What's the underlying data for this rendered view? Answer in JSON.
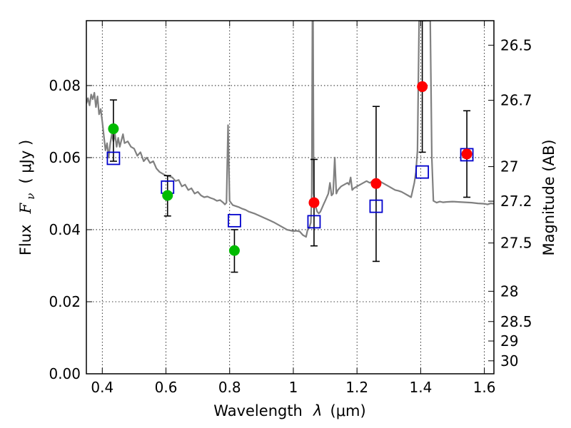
{
  "chart_data": {
    "type": "scatter",
    "xlabel": "Wavelength",
    "xlabel_symbol": "λ",
    "xlabel_unit": "(μm)",
    "ylabel": "Flux",
    "ylabel_symbol": "F",
    "ylabel_sub": "ν",
    "ylabel_unit": "( μJy )",
    "y2label": "Magnitude (AB)",
    "xlim": [
      0.35,
      1.63
    ],
    "ylim": [
      0.0,
      0.098
    ],
    "grid": true,
    "x_ticks": [
      0.4,
      0.6,
      0.8,
      1.0,
      1.2,
      1.4,
      1.6
    ],
    "x_tick_labels": [
      "0.4",
      "0.6",
      "0.8",
      "1",
      "1.2",
      "1.4",
      "1.6"
    ],
    "y_ticks": [
      0.0,
      0.02,
      0.04,
      0.06,
      0.08
    ],
    "y_tick_labels": [
      "0.00",
      "0.02",
      "0.04",
      "0.06",
      "0.08"
    ],
    "y2_ticks": [
      {
        "label": "26.5",
        "flux": 0.0912
      },
      {
        "label": "26.7",
        "flux": 0.0759
      },
      {
        "label": "27",
        "flux": 0.0575
      },
      {
        "label": "27.2",
        "flux": 0.0479
      },
      {
        "label": "27.5",
        "flux": 0.0363
      },
      {
        "label": "28",
        "flux": 0.0229
      },
      {
        "label": "28.5",
        "flux": 0.0145
      },
      {
        "label": "29",
        "flux": 0.0091
      },
      {
        "label": "30",
        "flux": 0.0036
      }
    ],
    "series": [
      {
        "type": "line",
        "color": "#808080",
        "points": [
          [
            0.35,
            0.075
          ],
          [
            0.355,
            0.0765
          ],
          [
            0.36,
            0.0745
          ],
          [
            0.365,
            0.0775
          ],
          [
            0.37,
            0.0762
          ],
          [
            0.375,
            0.078
          ],
          [
            0.38,
            0.074
          ],
          [
            0.385,
            0.077
          ],
          [
            0.39,
            0.072
          ],
          [
            0.395,
            0.0735
          ],
          [
            0.4,
            0.07
          ],
          [
            0.405,
            0.066
          ],
          [
            0.41,
            0.062
          ],
          [
            0.415,
            0.064
          ],
          [
            0.42,
            0.06
          ],
          [
            0.425,
            0.064
          ],
          [
            0.43,
            0.0665
          ],
          [
            0.435,
            0.0645
          ],
          [
            0.44,
            0.0665
          ],
          [
            0.445,
            0.063
          ],
          [
            0.45,
            0.0655
          ],
          [
            0.455,
            0.063
          ],
          [
            0.46,
            0.0648
          ],
          [
            0.465,
            0.0665
          ],
          [
            0.47,
            0.064
          ],
          [
            0.48,
            0.0645
          ],
          [
            0.49,
            0.063
          ],
          [
            0.5,
            0.0625
          ],
          [
            0.51,
            0.0605
          ],
          [
            0.52,
            0.0615
          ],
          [
            0.53,
            0.059
          ],
          [
            0.54,
            0.06
          ],
          [
            0.55,
            0.0585
          ],
          [
            0.56,
            0.059
          ],
          [
            0.57,
            0.057
          ],
          [
            0.58,
            0.056
          ],
          [
            0.59,
            0.0555
          ],
          [
            0.6,
            0.055
          ],
          [
            0.61,
            0.0548
          ],
          [
            0.62,
            0.0545
          ],
          [
            0.63,
            0.0535
          ],
          [
            0.64,
            0.0538
          ],
          [
            0.65,
            0.052
          ],
          [
            0.66,
            0.0525
          ],
          [
            0.67,
            0.051
          ],
          [
            0.68,
            0.0515
          ],
          [
            0.69,
            0.05
          ],
          [
            0.7,
            0.0505
          ],
          [
            0.71,
            0.0495
          ],
          [
            0.72,
            0.049
          ],
          [
            0.73,
            0.0492
          ],
          [
            0.74,
            0.0488
          ],
          [
            0.75,
            0.0485
          ],
          [
            0.76,
            0.048
          ],
          [
            0.77,
            0.0482
          ],
          [
            0.78,
            0.0475
          ],
          [
            0.785,
            0.047
          ],
          [
            0.79,
            0.0475
          ],
          [
            0.795,
            0.069
          ],
          [
            0.8,
            0.048
          ],
          [
            0.81,
            0.0468
          ],
          [
            0.82,
            0.0465
          ],
          [
            0.83,
            0.0462
          ],
          [
            0.84,
            0.0458
          ],
          [
            0.85,
            0.0455
          ],
          [
            0.86,
            0.045
          ],
          [
            0.87,
            0.0447
          ],
          [
            0.88,
            0.0444
          ],
          [
            0.89,
            0.044
          ],
          [
            0.9,
            0.0436
          ],
          [
            0.91,
            0.0432
          ],
          [
            0.92,
            0.0428
          ],
          [
            0.93,
            0.0424
          ],
          [
            0.94,
            0.042
          ],
          [
            0.95,
            0.0415
          ],
          [
            0.96,
            0.041
          ],
          [
            0.97,
            0.0405
          ],
          [
            0.98,
            0.04
          ],
          [
            0.99,
            0.0398
          ],
          [
            1.0,
            0.0396
          ],
          [
            1.01,
            0.0397
          ],
          [
            1.02,
            0.0395
          ],
          [
            1.03,
            0.0385
          ],
          [
            1.04,
            0.038
          ],
          [
            1.045,
            0.04
          ],
          [
            1.05,
            0.0405
          ],
          [
            1.055,
            0.042
          ],
          [
            1.058,
            0.05
          ],
          [
            1.06,
            0.098
          ],
          [
            1.062,
            0.098
          ],
          [
            1.064,
            0.05
          ],
          [
            1.068,
            0.047
          ],
          [
            1.075,
            0.045
          ],
          [
            1.08,
            0.0445
          ],
          [
            1.085,
            0.045
          ],
          [
            1.09,
            0.046
          ],
          [
            1.095,
            0.047
          ],
          [
            1.1,
            0.048
          ],
          [
            1.105,
            0.049
          ],
          [
            1.11,
            0.05
          ],
          [
            1.115,
            0.053
          ],
          [
            1.12,
            0.0495
          ],
          [
            1.125,
            0.05
          ],
          [
            1.13,
            0.06
          ],
          [
            1.135,
            0.05
          ],
          [
            1.14,
            0.051
          ],
          [
            1.15,
            0.052
          ],
          [
            1.16,
            0.0525
          ],
          [
            1.17,
            0.053
          ],
          [
            1.175,
            0.0525
          ],
          [
            1.18,
            0.0545
          ],
          [
            1.185,
            0.051
          ],
          [
            1.19,
            0.0515
          ],
          [
            1.2,
            0.052
          ],
          [
            1.21,
            0.0525
          ],
          [
            1.22,
            0.053
          ],
          [
            1.23,
            0.0535
          ],
          [
            1.24,
            0.053
          ],
          [
            1.25,
            0.0535
          ],
          [
            1.26,
            0.054
          ],
          [
            1.27,
            0.0535
          ],
          [
            1.28,
            0.053
          ],
          [
            1.29,
            0.0525
          ],
          [
            1.3,
            0.052
          ],
          [
            1.31,
            0.0515
          ],
          [
            1.32,
            0.051
          ],
          [
            1.33,
            0.0508
          ],
          [
            1.34,
            0.0505
          ],
          [
            1.35,
            0.05
          ],
          [
            1.36,
            0.0495
          ],
          [
            1.37,
            0.049
          ],
          [
            1.38,
            0.053
          ],
          [
            1.385,
            0.056
          ],
          [
            1.39,
            0.062
          ],
          [
            1.395,
            0.098
          ],
          [
            1.41,
            0.098
          ],
          [
            1.42,
            0.098
          ],
          [
            1.43,
            0.098
          ],
          [
            1.435,
            0.06
          ],
          [
            1.44,
            0.048
          ],
          [
            1.45,
            0.0475
          ],
          [
            1.46,
            0.0478
          ],
          [
            1.47,
            0.0476
          ],
          [
            1.48,
            0.0477
          ],
          [
            1.5,
            0.0478
          ],
          [
            1.52,
            0.0477
          ],
          [
            1.54,
            0.0476
          ],
          [
            1.56,
            0.0475
          ],
          [
            1.58,
            0.0473
          ],
          [
            1.6,
            0.0472
          ],
          [
            1.61,
            0.047
          ],
          [
            1.62,
            0.0473
          ],
          [
            1.63,
            0.0472
          ]
        ]
      },
      {
        "type": "errorbar",
        "marker": "circle",
        "color": "#00bb00",
        "points": [
          {
            "x": 0.435,
            "y": 0.068,
            "yerr_low": 0.059,
            "yerr_high": 0.076
          },
          {
            "x": 0.605,
            "y": 0.0495,
            "yerr_low": 0.0438,
            "yerr_high": 0.055
          },
          {
            "x": 0.815,
            "y": 0.0342,
            "yerr_low": 0.0282,
            "yerr_high": 0.04
          }
        ]
      },
      {
        "type": "errorbar",
        "marker": "circle",
        "color": "#ff0000",
        "points": [
          {
            "x": 1.065,
            "y": 0.0475,
            "yerr_low": 0.0355,
            "yerr_high": 0.0595
          },
          {
            "x": 1.26,
            "y": 0.0528,
            "yerr_low": 0.0312,
            "yerr_high": 0.0742
          },
          {
            "x": 1.405,
            "y": 0.0797,
            "yerr_low": 0.0615,
            "yerr_high": 0.098
          },
          {
            "x": 1.545,
            "y": 0.061,
            "yerr_low": 0.049,
            "yerr_high": 0.073
          }
        ]
      },
      {
        "type": "scatter",
        "marker": "square-open",
        "color": "#0000cc",
        "points": [
          {
            "x": 0.435,
            "y": 0.0598
          },
          {
            "x": 0.605,
            "y": 0.0518
          },
          {
            "x": 0.815,
            "y": 0.0425
          },
          {
            "x": 1.065,
            "y": 0.0422
          },
          {
            "x": 1.26,
            "y": 0.0465
          },
          {
            "x": 1.405,
            "y": 0.056
          },
          {
            "x": 1.545,
            "y": 0.0608
          }
        ]
      }
    ]
  }
}
